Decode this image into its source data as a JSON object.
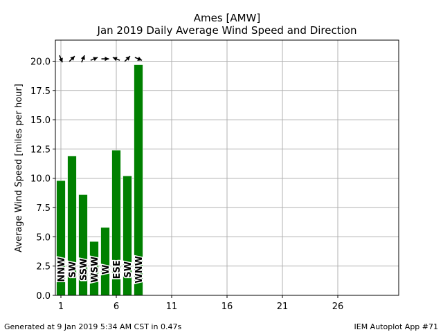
{
  "chart_data": {
    "type": "bar",
    "title": "Ames [AMW]",
    "subtitle": "Jan 2019 Daily Average Wind Speed and Direction",
    "xlabel": "",
    "ylabel": "Average Wind Speed [miles per hour]",
    "x": [
      1,
      2,
      3,
      4,
      5,
      6,
      7,
      8
    ],
    "values": [
      9.8,
      11.9,
      8.6,
      4.6,
      5.8,
      12.4,
      10.2,
      19.7
    ],
    "direction_labels": [
      "NNW",
      "SW",
      "SSW",
      "WSW",
      "W",
      "ESE",
      "SW",
      "WNW"
    ],
    "direction_degrees": [
      337.5,
      225,
      202.5,
      247.5,
      270,
      112.5,
      225,
      292.5
    ],
    "xlim": [
      0.5,
      31.5
    ],
    "ylim": [
      0,
      21.8
    ],
    "xticks": [
      1,
      6,
      11,
      16,
      21,
      26
    ],
    "yticks": [
      0,
      2.5,
      5,
      7.5,
      10,
      12.5,
      15,
      17.5,
      20
    ],
    "ytick_labels": [
      "0.0",
      "2.5",
      "5.0",
      "7.5",
      "10.0",
      "12.5",
      "15.0",
      "17.5",
      "20.0"
    ],
    "arrow_y": 20.2,
    "bar_color": "#008000",
    "grid": true
  },
  "footer": {
    "left": "Generated at 9 Jan 2019 5:34 AM CST in 0.47s",
    "right": "IEM Autoplot App #71"
  }
}
